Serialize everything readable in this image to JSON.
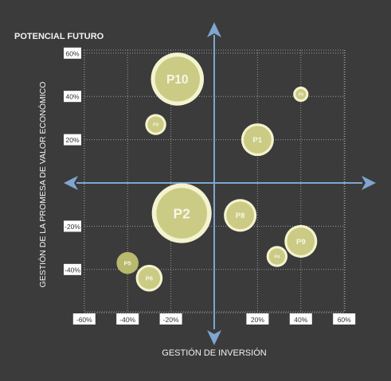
{
  "chart_data": {
    "type": "scatter",
    "subtype": "bubble",
    "title": "POTENCIAL FUTURO",
    "xlabel": "GESTIÓN DE INVERSIÓN",
    "ylabel": "GESTIÓN DE LA PROMESA DE VALOR ECONÓMICO",
    "xlim": [
      -60,
      60
    ],
    "ylim": [
      -60,
      60
    ],
    "x_ticks": [
      -60,
      -40,
      -20,
      20,
      40,
      60
    ],
    "x_tick_labels": [
      "-60%",
      "-40%",
      "-20%",
      "20%",
      "40%",
      "60%"
    ],
    "y_ticks": [
      60,
      40,
      20,
      -20,
      -40
    ],
    "y_tick_labels": [
      "60%",
      "40%",
      "20%",
      "-20%",
      "-40%"
    ],
    "grid": true,
    "points": [
      {
        "label": "P10",
        "x": -17,
        "y": 48,
        "size": 7,
        "style": "light"
      },
      {
        "label": "P8",
        "x": 40,
        "y": 41,
        "size": 1,
        "style": "light"
      },
      {
        "label": "P3",
        "x": -27,
        "y": 27,
        "size": 2,
        "style": "light"
      },
      {
        "label": "P1",
        "x": 20,
        "y": 20,
        "size": 4,
        "style": "light"
      },
      {
        "label": "P2",
        "x": -15,
        "y": -14,
        "size": 8,
        "style": "light"
      },
      {
        "label": "P8",
        "x": 12,
        "y": -15,
        "size": 4,
        "style": "light"
      },
      {
        "label": "P9",
        "x": 40,
        "y": -27,
        "size": 4,
        "style": "light"
      },
      {
        "label": "P4",
        "x": 29,
        "y": -34,
        "size": 2,
        "style": "light"
      },
      {
        "label": "P5",
        "x": -40,
        "y": -37,
        "size": 3,
        "style": "dark"
      },
      {
        "label": "P6",
        "x": -30,
        "y": -44,
        "size": 3,
        "style": "light"
      }
    ]
  },
  "colors": {
    "background": "#3b3b3b",
    "axis": "#7fa6cf",
    "grid": "#9a9a9a",
    "bubble_fill": "#cbcb85",
    "bubble_fill_dark": "#b8b86e",
    "bubble_ring": "#f4f3cf",
    "bubble_label": "#f7f6e6",
    "text": "#f2f2f2",
    "tick_box": "#ffffff",
    "tick_text": "#333333"
  }
}
